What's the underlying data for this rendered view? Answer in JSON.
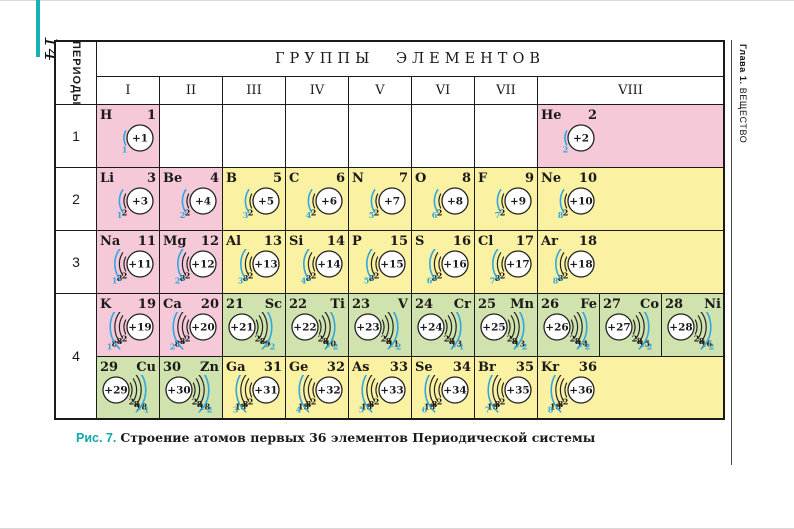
{
  "page": {
    "number": "14",
    "chapter_bold": "Глава 1.",
    "chapter_rest": " ВЕЩЕСТВО"
  },
  "caption": {
    "label": "Рис. 7.",
    "text": "Строение атомов первых 36 элементов Периодической системы"
  },
  "table": {
    "title": "ГРУППЫ ЭЛЕМЕНТОВ",
    "periods_label": "ПЕРИОДЫ",
    "groups": [
      "I",
      "II",
      "III",
      "IV",
      "V",
      "VI",
      "VII",
      "VIII"
    ],
    "colors": {
      "pink": "#f6c9d8",
      "yellow": "#faf1a2",
      "green": "#d0e3ae",
      "white": "#ffffff",
      "accent_teal": "#10a8ad",
      "shell_blue": "#2fa7e0",
      "line": "#1a1a1a"
    },
    "rows": [
      {
        "period": "1",
        "cells": [
          {
            "symbol": "H",
            "number": "1",
            "charge": "+1",
            "shells": [
              1
            ],
            "bg": "pink",
            "side": "left"
          },
          {
            "empty": true
          },
          {
            "empty": true
          },
          {
            "empty": true
          },
          {
            "empty": true
          },
          {
            "empty": true
          },
          {
            "empty": true
          },
          {
            "symbol": "He",
            "number": "2",
            "charge": "+2",
            "shells": [
              2
            ],
            "bg": "pink",
            "side": "left",
            "span": 3
          }
        ]
      },
      {
        "period": "2",
        "cells": [
          {
            "symbol": "Li",
            "number": "3",
            "charge": "+3",
            "shells": [
              2,
              1
            ],
            "bg": "pink",
            "side": "left"
          },
          {
            "symbol": "Be",
            "number": "4",
            "charge": "+4",
            "shells": [
              2,
              2
            ],
            "bg": "pink",
            "side": "left"
          },
          {
            "symbol": "B",
            "number": "5",
            "charge": "+5",
            "shells": [
              2,
              3
            ],
            "bg": "yellow",
            "side": "left"
          },
          {
            "symbol": "C",
            "number": "6",
            "charge": "+6",
            "shells": [
              2,
              4
            ],
            "bg": "yellow",
            "side": "left"
          },
          {
            "symbol": "N",
            "number": "7",
            "charge": "+7",
            "shells": [
              2,
              5
            ],
            "bg": "yellow",
            "side": "left"
          },
          {
            "symbol": "O",
            "number": "8",
            "charge": "+8",
            "shells": [
              2,
              6
            ],
            "bg": "yellow",
            "side": "left"
          },
          {
            "symbol": "F",
            "number": "9",
            "charge": "+9",
            "shells": [
              2,
              7
            ],
            "bg": "yellow",
            "side": "left"
          },
          {
            "symbol": "Ne",
            "number": "10",
            "charge": "+10",
            "shells": [
              2,
              8
            ],
            "bg": "yellow",
            "side": "left",
            "span": 3
          }
        ]
      },
      {
        "period": "3",
        "cells": [
          {
            "symbol": "Na",
            "number": "11",
            "charge": "+11",
            "shells": [
              2,
              8,
              1
            ],
            "bg": "pink",
            "side": "left"
          },
          {
            "symbol": "Mg",
            "number": "12",
            "charge": "+12",
            "shells": [
              2,
              8,
              2
            ],
            "bg": "pink",
            "side": "left"
          },
          {
            "symbol": "Al",
            "number": "13",
            "charge": "+13",
            "shells": [
              2,
              8,
              3
            ],
            "bg": "yellow",
            "side": "left"
          },
          {
            "symbol": "Si",
            "number": "14",
            "charge": "+14",
            "shells": [
              2,
              8,
              4
            ],
            "bg": "yellow",
            "side": "left"
          },
          {
            "symbol": "P",
            "number": "15",
            "charge": "+15",
            "shells": [
              2,
              8,
              5
            ],
            "bg": "yellow",
            "side": "left"
          },
          {
            "symbol": "S",
            "number": "16",
            "charge": "+16",
            "shells": [
              2,
              8,
              6
            ],
            "bg": "yellow",
            "side": "left"
          },
          {
            "symbol": "Cl",
            "number": "17",
            "charge": "+17",
            "shells": [
              2,
              8,
              7
            ],
            "bg": "yellow",
            "side": "left"
          },
          {
            "symbol": "Ar",
            "number": "18",
            "charge": "+18",
            "shells": [
              2,
              8,
              8
            ],
            "bg": "yellow",
            "side": "left",
            "span": 3
          }
        ]
      },
      {
        "period": "4",
        "rowspan": 2,
        "cells": [
          {
            "symbol": "K",
            "number": "19",
            "charge": "+19",
            "shells": [
              2,
              8,
              8,
              1
            ],
            "bg": "pink",
            "side": "left"
          },
          {
            "symbol": "Ca",
            "number": "20",
            "charge": "+20",
            "shells": [
              2,
              8,
              8,
              2
            ],
            "bg": "pink",
            "side": "left"
          },
          {
            "symbol": "Sc",
            "number": "21",
            "charge": "+21",
            "shells": [
              2,
              8,
              9,
              2
            ],
            "bg": "green",
            "side": "right",
            "numFirst": true
          },
          {
            "symbol": "Ti",
            "number": "22",
            "charge": "+22",
            "shells": [
              2,
              8,
              10,
              2
            ],
            "bg": "green",
            "side": "right",
            "numFirst": true
          },
          {
            "symbol": "V",
            "number": "23",
            "charge": "+23",
            "shells": [
              2,
              8,
              11,
              2
            ],
            "bg": "green",
            "side": "right",
            "numFirst": true
          },
          {
            "symbol": "Cr",
            "number": "24",
            "charge": "+24",
            "shells": [
              2,
              8,
              13,
              1
            ],
            "bg": "green",
            "side": "right",
            "numFirst": true
          },
          {
            "symbol": "Mn",
            "number": "25",
            "charge": "+25",
            "shells": [
              2,
              8,
              13,
              2
            ],
            "bg": "green",
            "side": "right",
            "numFirst": true
          },
          {
            "symbol": "Fe",
            "number": "26",
            "charge": "+26",
            "shells": [
              2,
              8,
              14,
              2
            ],
            "bg": "green",
            "side": "right",
            "numFirst": true
          },
          {
            "symbol": "Co",
            "number": "27",
            "charge": "+27",
            "shells": [
              2,
              8,
              15,
              2
            ],
            "bg": "green",
            "side": "right",
            "numFirst": true
          },
          {
            "symbol": "Ni",
            "number": "28",
            "charge": "+28",
            "shells": [
              2,
              8,
              16,
              2
            ],
            "bg": "green",
            "side": "right",
            "numFirst": true
          }
        ]
      },
      {
        "period": null,
        "cells": [
          {
            "symbol": "Cu",
            "number": "29",
            "charge": "+29",
            "shells": [
              2,
              8,
              18,
              1
            ],
            "bg": "green",
            "side": "right",
            "numFirst": true
          },
          {
            "symbol": "Zn",
            "number": "30",
            "charge": "+30",
            "shells": [
              2,
              8,
              18,
              2
            ],
            "bg": "green",
            "side": "right",
            "numFirst": true
          },
          {
            "symbol": "Ga",
            "number": "31",
            "charge": "+31",
            "shells": [
              2,
              8,
              18,
              3
            ],
            "bg": "yellow",
            "side": "left"
          },
          {
            "symbol": "Ge",
            "number": "32",
            "charge": "+32",
            "shells": [
              2,
              8,
              18,
              4
            ],
            "bg": "yellow",
            "side": "left"
          },
          {
            "symbol": "As",
            "number": "33",
            "charge": "+33",
            "shells": [
              2,
              8,
              18,
              5
            ],
            "bg": "yellow",
            "side": "left"
          },
          {
            "symbol": "Se",
            "number": "34",
            "charge": "+34",
            "shells": [
              2,
              8,
              18,
              6
            ],
            "bg": "yellow",
            "side": "left"
          },
          {
            "symbol": "Br",
            "number": "35",
            "charge": "+35",
            "shells": [
              2,
              8,
              18,
              7
            ],
            "bg": "yellow",
            "side": "left"
          },
          {
            "symbol": "Kr",
            "number": "36",
            "charge": "+36",
            "shells": [
              2,
              8,
              18,
              8
            ],
            "bg": "yellow",
            "side": "left",
            "span": 3
          }
        ]
      }
    ]
  }
}
